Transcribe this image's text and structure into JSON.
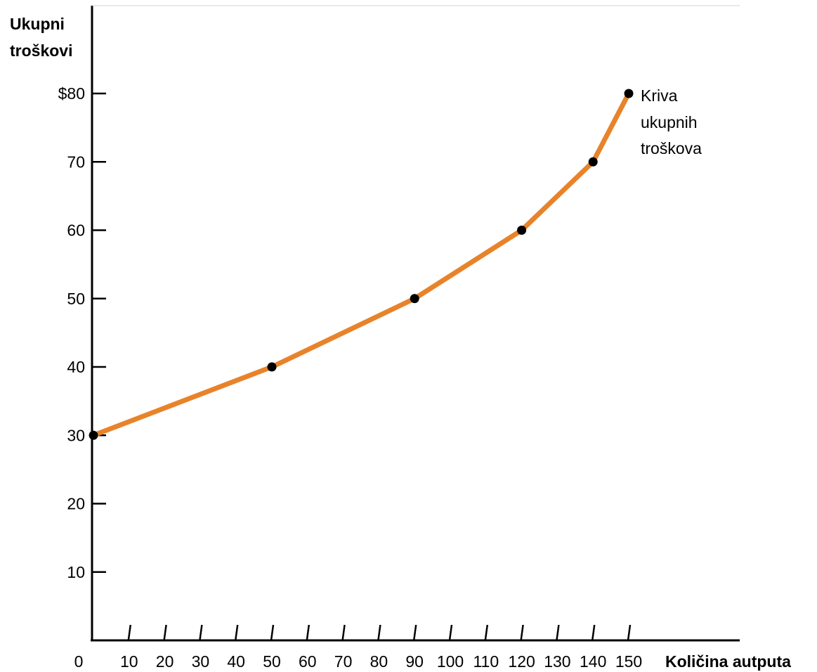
{
  "chart_data": {
    "type": "line",
    "title": "",
    "ylabel_lines": [
      "Ukupni",
      "troškovi"
    ],
    "xlabel": "Količina autputa",
    "xlim": [
      0,
      150
    ],
    "ylim": [
      0,
      80
    ],
    "x_ticks": [
      0,
      10,
      20,
      30,
      40,
      50,
      60,
      70,
      80,
      90,
      100,
      110,
      120,
      130,
      140,
      150
    ],
    "x_tick_labels": [
      "0",
      "10",
      "20",
      "30",
      "40",
      "50",
      "60",
      "70",
      "80",
      "90",
      "100",
      "110",
      "120",
      "130",
      "140",
      "150"
    ],
    "y_ticks": [
      10,
      20,
      30,
      40,
      50,
      60,
      70,
      80
    ],
    "y_tick_labels": [
      "10",
      "20",
      "30",
      "40",
      "50",
      "60",
      "70",
      "$80"
    ],
    "grid": false,
    "series": [
      {
        "color": "#e8832a",
        "points": [
          [
            0,
            30
          ],
          [
            50,
            40
          ],
          [
            90,
            50
          ],
          [
            120,
            60
          ],
          [
            140,
            70
          ],
          [
            150,
            80
          ]
        ]
      }
    ],
    "annotation_lines": [
      "Kriva",
      "ukupnih",
      "troškova"
    ],
    "marker_color": "#000000"
  }
}
